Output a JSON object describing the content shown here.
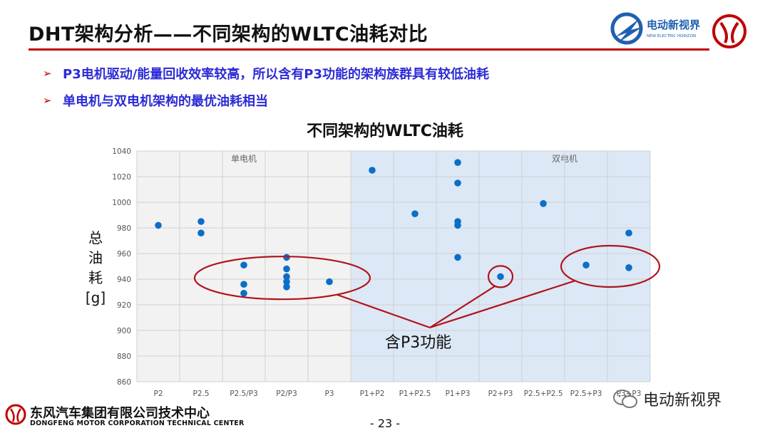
{
  "header": {
    "title": "DHT架构分析——不同架构的WLTC油耗对比",
    "logo_cn": "电动新视界",
    "logo_en": "NEW ELECTRIC HORIZON"
  },
  "bullets": [
    "P3电机驱动/能量回收效率较高，所以含有P3功能的架构族群具有较低油耗",
    "单电机与双电机架构的最优油耗相当"
  ],
  "chart_data": {
    "type": "scatter",
    "title": "不同架构的WLTC油耗",
    "ylabel": "总油耗[g]",
    "xlabel": "",
    "ylim": [
      860,
      1040
    ],
    "yticks": [
      860,
      880,
      900,
      920,
      940,
      960,
      980,
      1000,
      1020,
      1040
    ],
    "categories": [
      "P2",
      "P2.5",
      "P2.5/P3",
      "P2/P3",
      "P3",
      "P1+P2",
      "P1+P2.5",
      "P1+P3",
      "P2+P3",
      "P2.5+P2.5",
      "P2.5+P3",
      "P3+P3"
    ],
    "regions": [
      {
        "label": "单电机",
        "from": "P2",
        "to": "P3",
        "color": "#f2f2f2"
      },
      {
        "label": "双电机",
        "from": "P1+P2",
        "to": "P3+P3",
        "color": "#dce8f5"
      }
    ],
    "grid": true,
    "points": [
      {
        "x": "P2",
        "y": 982
      },
      {
        "x": "P2.5",
        "y": 985
      },
      {
        "x": "P2.5",
        "y": 976
      },
      {
        "x": "P2.5/P3",
        "y": 951
      },
      {
        "x": "P2.5/P3",
        "y": 936
      },
      {
        "x": "P2.5/P3",
        "y": 929
      },
      {
        "x": "P2/P3",
        "y": 957
      },
      {
        "x": "P2/P3",
        "y": 948
      },
      {
        "x": "P2/P3",
        "y": 942
      },
      {
        "x": "P2/P3",
        "y": 938
      },
      {
        "x": "P2/P3",
        "y": 934
      },
      {
        "x": "P3",
        "y": 938
      },
      {
        "x": "P1+P2",
        "y": 1025
      },
      {
        "x": "P1+P2.5",
        "y": 991
      },
      {
        "x": "P1+P3",
        "y": 1031
      },
      {
        "x": "P1+P3",
        "y": 1015
      },
      {
        "x": "P1+P3",
        "y": 985
      },
      {
        "x": "P1+P3",
        "y": 982
      },
      {
        "x": "P1+P3",
        "y": 957
      },
      {
        "x": "P2+P3",
        "y": 942
      },
      {
        "x": "P2.5+P2.5",
        "y": 999
      },
      {
        "x": "P2.5+P3",
        "y": 951
      },
      {
        "x": "P3+P3",
        "y": 976
      },
      {
        "x": "P3+P3",
        "y": 949
      }
    ],
    "marker_color": "#0b6fc7",
    "annotation": "含P3功能"
  },
  "footer": {
    "company_cn": "东风汽车集团有限公司技术中心",
    "company_en": "DONGFENG MOTOR CORPORATION TECHNICAL CENTER",
    "page": "- 23 -",
    "watermark": "电动新视界"
  }
}
